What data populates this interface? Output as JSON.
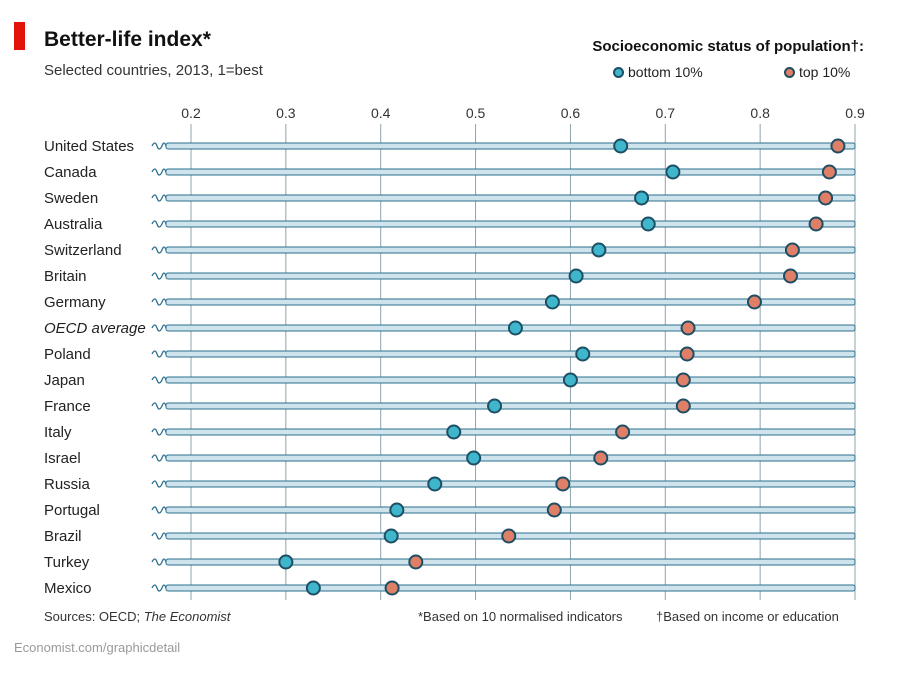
{
  "header": {
    "title": "Better-life index*",
    "subtitle": "Selected countries, 2013, 1=best"
  },
  "legend": {
    "title": "Socioeconomic status of population†:",
    "bottom_label": "bottom 10%",
    "top_label": "top 10%"
  },
  "colors": {
    "brand_red": "#e3120b",
    "bottom_fill": "#3fb6cc",
    "top_fill": "#e07f68",
    "marker_stroke": "#1d4e63",
    "bar": "#cfe3ec",
    "bar_edge": "#2a6f8e"
  },
  "chart_data": {
    "type": "scatter",
    "title": "Better-life index*",
    "subtitle": "Selected countries, 2013, 1=best",
    "xlim": [
      0.17,
      0.9
    ],
    "x_ticks": [
      "0.2",
      "0.3",
      "0.4",
      "0.5",
      "0.6",
      "0.7",
      "0.8",
      "0.9"
    ],
    "grid": true,
    "legend_position": "top-right",
    "categories": [
      "United States",
      "Canada",
      "Sweden",
      "Australia",
      "Switzerland",
      "Britain",
      "Germany",
      "OECD average",
      "Poland",
      "Japan",
      "France",
      "Italy",
      "Israel",
      "Russia",
      "Portugal",
      "Brazil",
      "Turkey",
      "Mexico"
    ],
    "series": [
      {
        "name": "bottom 10%",
        "values": [
          0.653,
          0.708,
          0.675,
          0.682,
          0.63,
          0.606,
          0.581,
          0.542,
          0.613,
          0.6,
          0.52,
          0.477,
          0.498,
          0.457,
          0.417,
          0.411,
          0.3,
          0.329
        ]
      },
      {
        "name": "top 10%",
        "values": [
          0.882,
          0.873,
          0.869,
          0.859,
          0.834,
          0.832,
          0.794,
          0.724,
          0.723,
          0.719,
          0.719,
          0.655,
          0.632,
          0.592,
          0.583,
          0.535,
          0.437,
          0.412
        ]
      }
    ]
  },
  "footer": {
    "sources_label": "Sources: OECD;",
    "sources_publication": "The Economist",
    "note_star": "*Based on 10 normalised indicators",
    "note_dagger": "†Based on income or education",
    "url": "Economist.com/graphicdetail"
  }
}
